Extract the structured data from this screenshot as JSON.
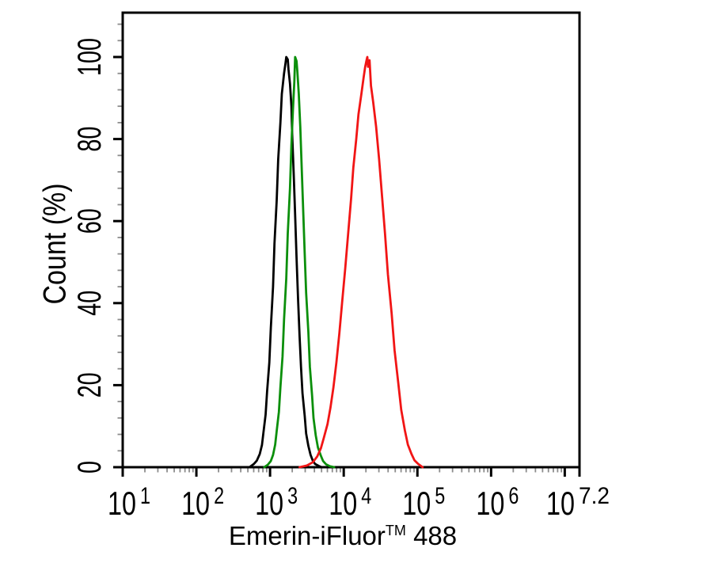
{
  "figure": {
    "xlabel": {
      "base": "Emerin-iFluor",
      "superscript": "TM",
      "suffix": " 488"
    },
    "ylabel": "Count (%)"
  },
  "colors": {
    "background": "#ffffff",
    "axis": "#000000",
    "minor_tick": "#8c8c8c"
  },
  "chart_data": {
    "type": "line",
    "title": "",
    "xlabel": "Emerin-iFluor™ 488",
    "ylabel": "Count (%)",
    "x_scale": "log10",
    "xlim_log10": [
      1,
      7.2
    ],
    "ylim": [
      0,
      110.8
    ],
    "grid": false,
    "legend": "none",
    "x_ticks": [
      {
        "log10": 1,
        "base": "10",
        "exp": "1"
      },
      {
        "log10": 2,
        "base": "10",
        "exp": "2"
      },
      {
        "log10": 3,
        "base": "10",
        "exp": "3"
      },
      {
        "log10": 4,
        "base": "10",
        "exp": "4"
      },
      {
        "log10": 5,
        "base": "10",
        "exp": "5"
      },
      {
        "log10": 6,
        "base": "10",
        "exp": "6"
      },
      {
        "log10": 7,
        "base": null,
        "exp": null
      },
      {
        "log10": 7.2,
        "base": "10",
        "exp": "7.2",
        "edge": true
      }
    ],
    "y_ticks": {
      "major": [
        0,
        20,
        40,
        60,
        80,
        100
      ],
      "minor_step": 4
    },
    "series": [
      {
        "name": "black",
        "color": "#000000",
        "peak_x_log10": 3.22,
        "points": [
          [
            2.72,
            0
          ],
          [
            2.78,
            0.8
          ],
          [
            2.82,
            1.6
          ],
          [
            2.86,
            3.2
          ],
          [
            2.89,
            5.4
          ],
          [
            2.91,
            8.5
          ],
          [
            2.94,
            12.8
          ],
          [
            2.96,
            18.5
          ],
          [
            2.99,
            25.5
          ],
          [
            3.01,
            34
          ],
          [
            3.04,
            44
          ],
          [
            3.06,
            54.5
          ],
          [
            3.09,
            65
          ],
          [
            3.11,
            75
          ],
          [
            3.14,
            84
          ],
          [
            3.16,
            91
          ],
          [
            3.19,
            96
          ],
          [
            3.21,
            98.6
          ],
          [
            3.22,
            100
          ],
          [
            3.24,
            99.4
          ],
          [
            3.25,
            97
          ],
          [
            3.27,
            93.5
          ],
          [
            3.29,
            88
          ],
          [
            3.3,
            81.5
          ],
          [
            3.32,
            72
          ],
          [
            3.34,
            61.5
          ],
          [
            3.36,
            51
          ],
          [
            3.38,
            41
          ],
          [
            3.4,
            32
          ],
          [
            3.42,
            24.5
          ],
          [
            3.44,
            18
          ],
          [
            3.47,
            12.5
          ],
          [
            3.49,
            8.2
          ],
          [
            3.52,
            5.2
          ],
          [
            3.55,
            3.0
          ],
          [
            3.58,
            1.6
          ],
          [
            3.61,
            0.8
          ],
          [
            3.66,
            0.3
          ],
          [
            3.7,
            0
          ]
        ]
      },
      {
        "name": "green",
        "color": "#0b8f0b",
        "peak_x_log10": 3.34,
        "points": [
          [
            2.92,
            0
          ],
          [
            2.97,
            0.6
          ],
          [
            3.01,
            1.5
          ],
          [
            3.04,
            3.0
          ],
          [
            3.07,
            5.5
          ],
          [
            3.09,
            8.8
          ],
          [
            3.12,
            13.5
          ],
          [
            3.14,
            19.5
          ],
          [
            3.17,
            27
          ],
          [
            3.19,
            36
          ],
          [
            3.22,
            46
          ],
          [
            3.24,
            57
          ],
          [
            3.27,
            68
          ],
          [
            3.29,
            78.5
          ],
          [
            3.31,
            87
          ],
          [
            3.33,
            94
          ],
          [
            3.34,
            100
          ],
          [
            3.36,
            99
          ],
          [
            3.37,
            96.5
          ],
          [
            3.39,
            91
          ],
          [
            3.41,
            83
          ],
          [
            3.43,
            73
          ],
          [
            3.45,
            62.5
          ],
          [
            3.47,
            52
          ],
          [
            3.49,
            42.5
          ],
          [
            3.52,
            33
          ],
          [
            3.54,
            24.5
          ],
          [
            3.57,
            17.5
          ],
          [
            3.59,
            12
          ],
          [
            3.62,
            7.8
          ],
          [
            3.65,
            4.8
          ],
          [
            3.69,
            2.8
          ],
          [
            3.72,
            1.5
          ],
          [
            3.76,
            0.7
          ],
          [
            3.81,
            0.25
          ],
          [
            3.87,
            0
          ]
        ]
      },
      {
        "name": "red",
        "color": "#f11515",
        "peak_x_log10": 4.32,
        "points": [
          [
            3.4,
            0
          ],
          [
            3.5,
            0.4
          ],
          [
            3.58,
            1.2
          ],
          [
            3.64,
            2.6
          ],
          [
            3.69,
            4.6
          ],
          [
            3.73,
            7.2
          ],
          [
            3.78,
            10.5
          ],
          [
            3.82,
            14.5
          ],
          [
            3.86,
            19.5
          ],
          [
            3.9,
            25.5
          ],
          [
            3.94,
            32.5
          ],
          [
            3.98,
            40.5
          ],
          [
            4.02,
            48.5
          ],
          [
            4.06,
            57
          ],
          [
            4.1,
            65.5
          ],
          [
            4.13,
            73
          ],
          [
            4.17,
            80
          ],
          [
            4.2,
            86
          ],
          [
            4.24,
            91
          ],
          [
            4.27,
            95
          ],
          [
            4.29,
            97.5
          ],
          [
            4.31,
            99.2
          ],
          [
            4.32,
            100
          ],
          [
            4.33,
            97.6
          ],
          [
            4.35,
            99.2
          ],
          [
            4.37,
            93
          ],
          [
            4.4,
            89
          ],
          [
            4.44,
            83
          ],
          [
            4.48,
            75
          ],
          [
            4.52,
            66
          ],
          [
            4.56,
            57
          ],
          [
            4.6,
            47
          ],
          [
            4.65,
            37.5
          ],
          [
            4.69,
            28.5
          ],
          [
            4.74,
            20.5
          ],
          [
            4.78,
            14
          ],
          [
            4.83,
            9
          ],
          [
            4.87,
            5.5
          ],
          [
            4.92,
            3.2
          ],
          [
            4.96,
            1.7
          ],
          [
            5.01,
            0.8
          ],
          [
            5.07,
            0
          ]
        ]
      }
    ]
  }
}
